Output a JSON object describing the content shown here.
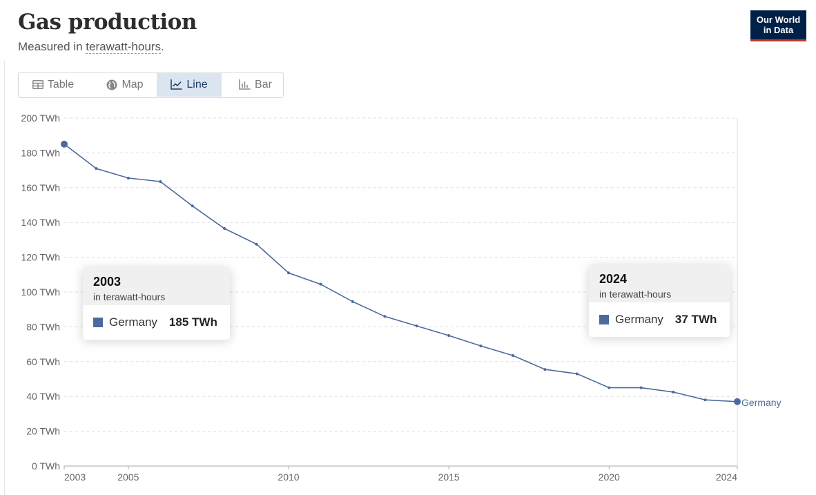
{
  "header": {
    "title": "Gas production",
    "subtitle_prefix": "Measured in ",
    "subtitle_unit": "terawatt-hours",
    "subtitle_suffix": "."
  },
  "logo": {
    "line1": "Our World",
    "line2": "in Data"
  },
  "tabs": [
    {
      "label": "Table",
      "icon": "table-icon",
      "active": false
    },
    {
      "label": "Map",
      "icon": "globe-icon",
      "active": false
    },
    {
      "label": "Line",
      "icon": "line-chart-icon",
      "active": true
    },
    {
      "label": "Bar",
      "icon": "bar-chart-icon",
      "active": false
    }
  ],
  "colors": {
    "series": "#4c6a9c",
    "logo_bg": "#002147",
    "logo_accent": "#c0392b",
    "active_tab": "#dbe5f0"
  },
  "tooltips": [
    {
      "year": "2003",
      "unit": "in terawatt-hours",
      "entity": "Germany",
      "value": "185 TWh"
    },
    {
      "year": "2024",
      "unit": "in terawatt-hours",
      "entity": "Germany",
      "value": "37 TWh"
    }
  ],
  "chart_data": {
    "type": "line",
    "title": "Gas production",
    "ylabel": "",
    "xlabel": "",
    "ylim": [
      0,
      200
    ],
    "xlim": [
      2003,
      2024
    ],
    "y_ticks": [
      0,
      20,
      40,
      60,
      80,
      100,
      120,
      140,
      160,
      180,
      200
    ],
    "y_tick_labels": [
      "0 TWh",
      "20 TWh",
      "40 TWh",
      "60 TWh",
      "80 TWh",
      "100 TWh",
      "120 TWh",
      "140 TWh",
      "160 TWh",
      "180 TWh",
      "200 TWh"
    ],
    "x_ticks": [
      2003,
      2005,
      2010,
      2015,
      2020,
      2024
    ],
    "x_tick_labels": [
      "2003",
      "2005",
      "2010",
      "2015",
      "2020",
      "2024"
    ],
    "grid": "horizontal dashed",
    "x": [
      2003,
      2004,
      2005,
      2006,
      2007,
      2008,
      2009,
      2010,
      2011,
      2012,
      2013,
      2014,
      2015,
      2016,
      2017,
      2018,
      2019,
      2020,
      2021,
      2022,
      2023,
      2024
    ],
    "series": [
      {
        "name": "Germany",
        "color": "#4c6a9c",
        "values": [
          185,
          171,
          165.5,
          163.5,
          149.5,
          136.5,
          127.5,
          111,
          104.5,
          94.5,
          86,
          80.5,
          75,
          69,
          63.5,
          55.5,
          53,
          45,
          45,
          42.5,
          38,
          37
        ]
      }
    ]
  }
}
